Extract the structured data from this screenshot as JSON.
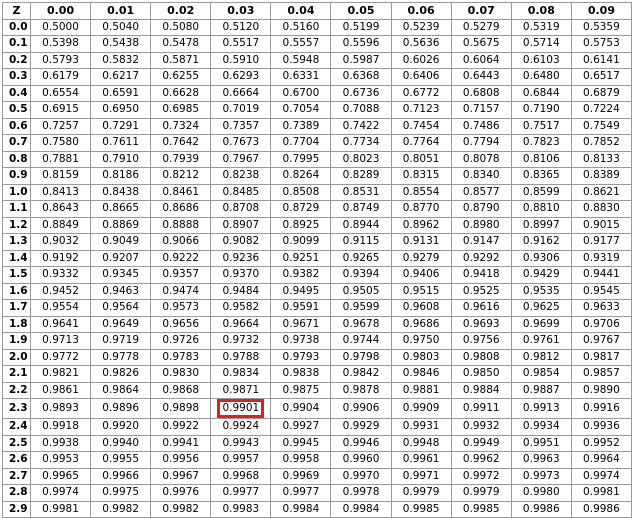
{
  "table": {
    "headers": [
      "Z",
      "0.00",
      "0.01",
      "0.02",
      "0.03",
      "0.04",
      "0.05",
      "0.06",
      "0.07",
      "0.08",
      "0.09"
    ],
    "highlight": {
      "row": 23,
      "col": 3
    },
    "rows": [
      {
        "z": "0.0",
        "values": [
          "0.5000",
          "0.5040",
          "0.5080",
          "0.5120",
          "0.5160",
          "0.5199",
          "0.5239",
          "0.5279",
          "0.5319",
          "0.5359"
        ]
      },
      {
        "z": "0.1",
        "values": [
          "0.5398",
          "0.5438",
          "0.5478",
          "0.5517",
          "0.5557",
          "0.5596",
          "0.5636",
          "0.5675",
          "0.5714",
          "0.5753"
        ]
      },
      {
        "z": "0.2",
        "values": [
          "0.5793",
          "0.5832",
          "0.5871",
          "0.5910",
          "0.5948",
          "0.5987",
          "0.6026",
          "0.6064",
          "0.6103",
          "0.6141"
        ]
      },
      {
        "z": "0.3",
        "values": [
          "0.6179",
          "0.6217",
          "0.6255",
          "0.6293",
          "0.6331",
          "0.6368",
          "0.6406",
          "0.6443",
          "0.6480",
          "0.6517"
        ]
      },
      {
        "z": "0.4",
        "values": [
          "0.6554",
          "0.6591",
          "0.6628",
          "0.6664",
          "0.6700",
          "0.6736",
          "0.6772",
          "0.6808",
          "0.6844",
          "0.6879"
        ]
      },
      {
        "z": "0.5",
        "values": [
          "0.6915",
          "0.6950",
          "0.6985",
          "0.7019",
          "0.7054",
          "0.7088",
          "0.7123",
          "0.7157",
          "0.7190",
          "0.7224"
        ]
      },
      {
        "z": "0.6",
        "values": [
          "0.7257",
          "0.7291",
          "0.7324",
          "0.7357",
          "0.7389",
          "0.7422",
          "0.7454",
          "0.7486",
          "0.7517",
          "0.7549"
        ]
      },
      {
        "z": "0.7",
        "values": [
          "0.7580",
          "0.7611",
          "0.7642",
          "0.7673",
          "0.7704",
          "0.7734",
          "0.7764",
          "0.7794",
          "0.7823",
          "0.7852"
        ]
      },
      {
        "z": "0.8",
        "values": [
          "0.7881",
          "0.7910",
          "0.7939",
          "0.7967",
          "0.7995",
          "0.8023",
          "0.8051",
          "0.8078",
          "0.8106",
          "0.8133"
        ]
      },
      {
        "z": "0.9",
        "values": [
          "0.8159",
          "0.8186",
          "0.8212",
          "0.8238",
          "0.8264",
          "0.8289",
          "0.8315",
          "0.8340",
          "0.8365",
          "0.8389"
        ]
      },
      {
        "z": "1.0",
        "values": [
          "0.8413",
          "0.8438",
          "0.8461",
          "0.8485",
          "0.8508",
          "0.8531",
          "0.8554",
          "0.8577",
          "0.8599",
          "0.8621"
        ]
      },
      {
        "z": "1.1",
        "values": [
          "0.8643",
          "0.8665",
          "0.8686",
          "0.8708",
          "0.8729",
          "0.8749",
          "0.8770",
          "0.8790",
          "0.8810",
          "0.8830"
        ]
      },
      {
        "z": "1.2",
        "values": [
          "0.8849",
          "0.8869",
          "0.8888",
          "0.8907",
          "0.8925",
          "0.8944",
          "0.8962",
          "0.8980",
          "0.8997",
          "0.9015"
        ]
      },
      {
        "z": "1.3",
        "values": [
          "0.9032",
          "0.9049",
          "0.9066",
          "0.9082",
          "0.9099",
          "0.9115",
          "0.9131",
          "0.9147",
          "0.9162",
          "0.9177"
        ]
      },
      {
        "z": "1.4",
        "values": [
          "0.9192",
          "0.9207",
          "0.9222",
          "0.9236",
          "0.9251",
          "0.9265",
          "0.9279",
          "0.9292",
          "0.9306",
          "0.9319"
        ]
      },
      {
        "z": "1.5",
        "values": [
          "0.9332",
          "0.9345",
          "0.9357",
          "0.9370",
          "0.9382",
          "0.9394",
          "0.9406",
          "0.9418",
          "0.9429",
          "0.9441"
        ]
      },
      {
        "z": "1.6",
        "values": [
          "0.9452",
          "0.9463",
          "0.9474",
          "0.9484",
          "0.9495",
          "0.9505",
          "0.9515",
          "0.9525",
          "0.9535",
          "0.9545"
        ]
      },
      {
        "z": "1.7",
        "values": [
          "0.9554",
          "0.9564",
          "0.9573",
          "0.9582",
          "0.9591",
          "0.9599",
          "0.9608",
          "0.9616",
          "0.9625",
          "0.9633"
        ]
      },
      {
        "z": "1.8",
        "values": [
          "0.9641",
          "0.9649",
          "0.9656",
          "0.9664",
          "0.9671",
          "0.9678",
          "0.9686",
          "0.9693",
          "0.9699",
          "0.9706"
        ]
      },
      {
        "z": "1.9",
        "values": [
          "0.9713",
          "0.9719",
          "0.9726",
          "0.9732",
          "0.9738",
          "0.9744",
          "0.9750",
          "0.9756",
          "0.9761",
          "0.9767"
        ]
      },
      {
        "z": "2.0",
        "values": [
          "0.9772",
          "0.9778",
          "0.9783",
          "0.9788",
          "0.9793",
          "0.9798",
          "0.9803",
          "0.9808",
          "0.9812",
          "0.9817"
        ]
      },
      {
        "z": "2.1",
        "values": [
          "0.9821",
          "0.9826",
          "0.9830",
          "0.9834",
          "0.9838",
          "0.9842",
          "0.9846",
          "0.9850",
          "0.9854",
          "0.9857"
        ]
      },
      {
        "z": "2.2",
        "values": [
          "0.9861",
          "0.9864",
          "0.9868",
          "0.9871",
          "0.9875",
          "0.9878",
          "0.9881",
          "0.9884",
          "0.9887",
          "0.9890"
        ]
      },
      {
        "z": "2.3",
        "values": [
          "0.9893",
          "0.9896",
          "0.9898",
          "0.9901",
          "0.9904",
          "0.9906",
          "0.9909",
          "0.9911",
          "0.9913",
          "0.9916"
        ]
      },
      {
        "z": "2.4",
        "values": [
          "0.9918",
          "0.9920",
          "0.9922",
          "0.9924",
          "0.9927",
          "0.9929",
          "0.9931",
          "0.9932",
          "0.9934",
          "0.9936"
        ]
      },
      {
        "z": "2.5",
        "values": [
          "0.9938",
          "0.9940",
          "0.9941",
          "0.9943",
          "0.9945",
          "0.9946",
          "0.9948",
          "0.9949",
          "0.9951",
          "0.9952"
        ]
      },
      {
        "z": "2.6",
        "values": [
          "0.9953",
          "0.9955",
          "0.9956",
          "0.9957",
          "0.9958",
          "0.9960",
          "0.9961",
          "0.9962",
          "0.9963",
          "0.9964"
        ]
      },
      {
        "z": "2.7",
        "values": [
          "0.9965",
          "0.9966",
          "0.9967",
          "0.9968",
          "0.9969",
          "0.9970",
          "0.9971",
          "0.9972",
          "0.9973",
          "0.9974"
        ]
      },
      {
        "z": "2.8",
        "values": [
          "0.9974",
          "0.9975",
          "0.9976",
          "0.9977",
          "0.9977",
          "0.9978",
          "0.9979",
          "0.9979",
          "0.9980",
          "0.9981"
        ]
      },
      {
        "z": "2.9",
        "values": [
          "0.9981",
          "0.9982",
          "0.9982",
          "0.9983",
          "0.9984",
          "0.9984",
          "0.9985",
          "0.9985",
          "0.9986",
          "0.9986"
        ]
      }
    ]
  },
  "colors": {
    "grid": "#9a9a9a",
    "highlight_border": "#e51c1c",
    "text": "#000000"
  }
}
